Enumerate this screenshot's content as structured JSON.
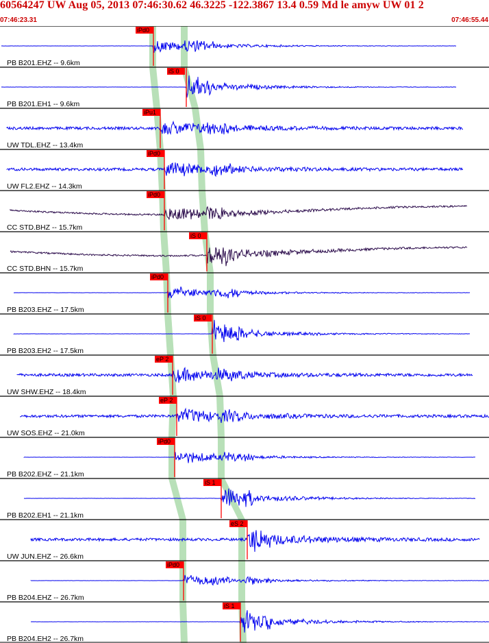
{
  "header": {
    "title": "60564247 UW Aug 05, 2013 07:46:30.62    46.3225 -122.3867 13.4 0.59 Md le amyw UW 01    2",
    "time_start": "07:46:23.31",
    "time_end": "07:46:55.44"
  },
  "colors": {
    "trace_blue": "#0000ee",
    "trace_dark": "#2a0a4a",
    "pick_red": "#ff0000",
    "band_green": "#b8e0b8",
    "title_red": "#cc0000"
  },
  "time_axis": {
    "start": "07:46:23.31",
    "end": "07:46:55.44"
  },
  "traces": [
    {
      "label": "PB B201.EHZ -- 9.6km",
      "pick": "iPd0",
      "color": "blue"
    },
    {
      "label": "PB B201.EH1 -- 9.6km",
      "pick": "iS 0",
      "color": "blue"
    },
    {
      "label": "UW TDL.EHZ -- 13.4km",
      "pick": "iPu1",
      "color": "blue"
    },
    {
      "label": "UW FL2.EHZ -- 14.3km",
      "pick": "iPd0",
      "color": "blue"
    },
    {
      "label": "CC STD.BHZ -- 15.7km",
      "pick": "iPd0",
      "color": "dark"
    },
    {
      "label": "CC STD.BHN -- 15.7km",
      "pick": "iS 0",
      "color": "dark"
    },
    {
      "label": "PB B203.EHZ -- 17.5km",
      "pick": "iPd0",
      "color": "blue"
    },
    {
      "label": "PB B203.EH2 -- 17.5km",
      "pick": "iS 0",
      "color": "blue"
    },
    {
      "label": "UW SHW.EHZ -- 18.4km",
      "pick": "eP 2",
      "color": "blue"
    },
    {
      "label": "UW SOS.EHZ -- 21.0km",
      "pick": "eP 2",
      "color": "blue"
    },
    {
      "label": "PB B202.EHZ -- 21.1km",
      "pick": "iPd0",
      "color": "blue"
    },
    {
      "label": "PB B202.EH1 -- 21.1km",
      "pick": "iS 1",
      "color": "blue"
    },
    {
      "label": "UW JUN.EHZ -- 26.6km",
      "pick": "eS 2",
      "color": "blue"
    },
    {
      "label": "PB B204.EHZ -- 26.7km",
      "pick": "iPd0",
      "color": "blue"
    },
    {
      "label": "PB B204.EH2 -- 26.7km",
      "pick": "iS 1",
      "color": "blue"
    }
  ]
}
